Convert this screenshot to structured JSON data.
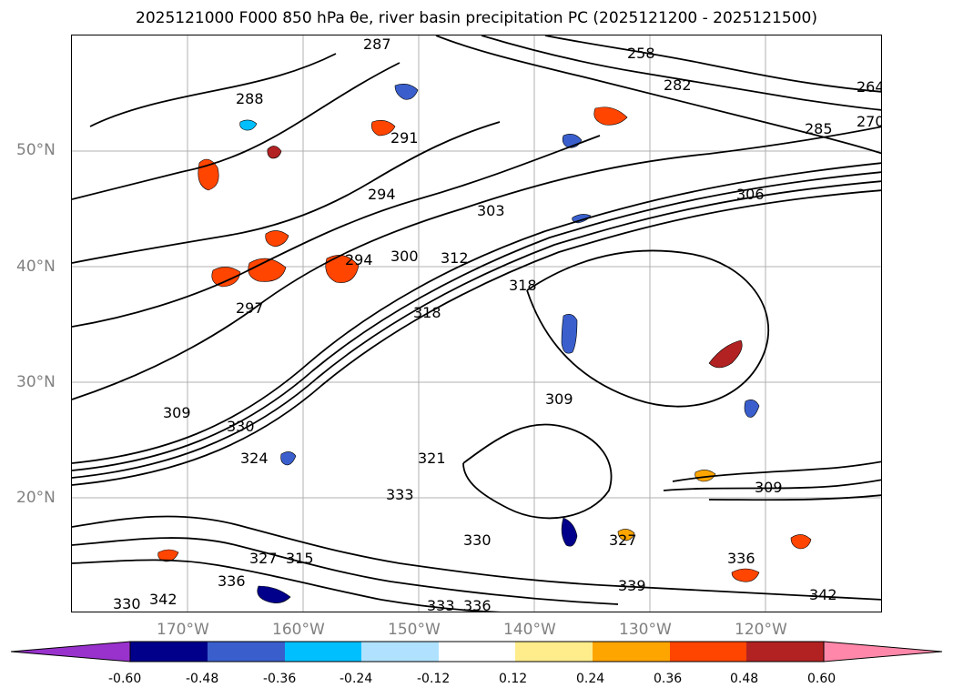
{
  "title": "2025121000 F000 850 hPa θe, river basin precipitation PC (2025121200 - 2025121500)",
  "map": {
    "lat_labels": [
      "50°N",
      "40°N",
      "30°N",
      "20°N"
    ],
    "lon_labels": [
      "170°W",
      "160°W",
      "150°W",
      "140°W",
      "130°W",
      "120°W"
    ],
    "contour_labels": [
      "264",
      "270",
      "258",
      "288",
      "285",
      "287",
      "282",
      "291",
      "294",
      "297",
      "294",
      "300",
      "303",
      "306",
      "312",
      "318",
      "318",
      "309",
      "309",
      "309",
      "330",
      "324",
      "321",
      "333",
      "330",
      "327",
      "336",
      "339",
      "336",
      "342",
      "342",
      "333",
      "315",
      "330",
      "336",
      "327"
    ],
    "grid_color": "#b0b0b0",
    "contour_color": "#000000"
  },
  "colorbar": {
    "tick_labels": [
      "-0.60",
      "-0.48",
      "-0.36",
      "-0.24",
      "-0.12",
      "0.12",
      "0.24",
      "0.36",
      "0.48",
      "0.60"
    ],
    "colors": [
      "#9932cc",
      "#00008b",
      "#3a5fcd",
      "#00bfff",
      "#b0e2ff",
      "#ffffff",
      "#ffec8b",
      "#ffa500",
      "#ff4500",
      "#b22222",
      "#ff88aa"
    ]
  }
}
